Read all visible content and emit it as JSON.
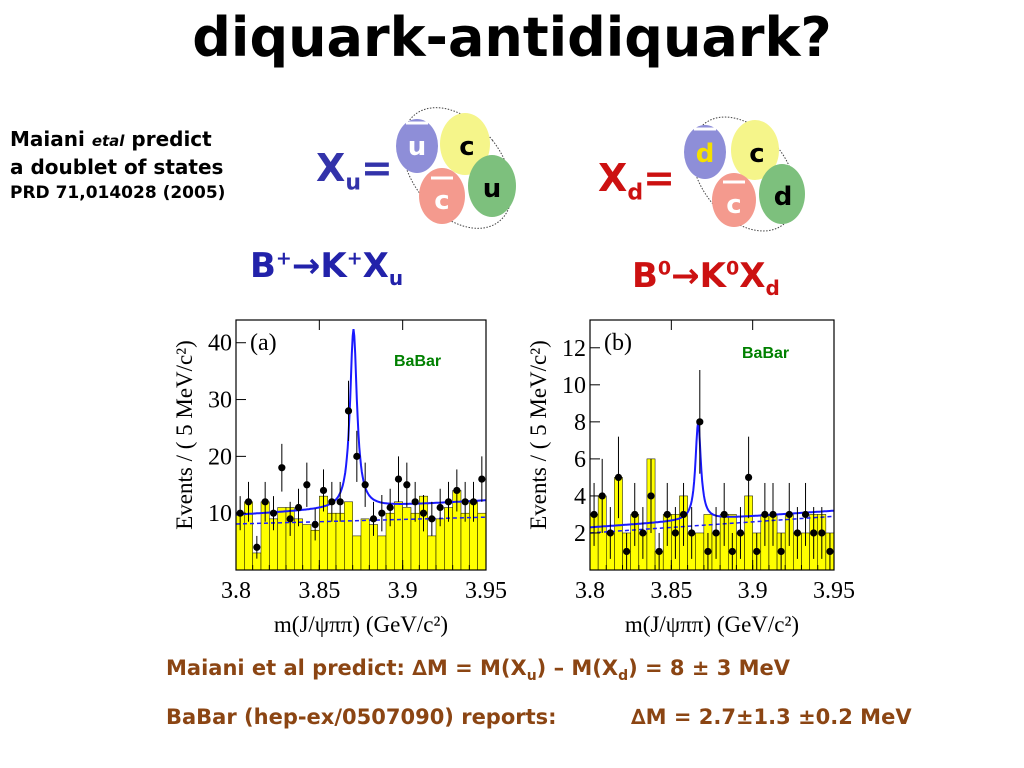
{
  "title": "diquark-antidiquark?",
  "side_note": {
    "line1_pre": "Maiani ",
    "line1_em": "etal",
    "line1_post": " predict",
    "line2": "a doublet of states",
    "line3": "PRD 71,014028 (2005)"
  },
  "xu": {
    "label": "X",
    "sub": "u",
    "eq": "=",
    "quarks": [
      "u",
      "c",
      "c",
      "u"
    ],
    "colors": {
      "label": "#3333aa",
      "ubar": "#8e8ed8",
      "c": "#f5f58a",
      "cbar": "#f49a8e",
      "u": "#7dc07d"
    }
  },
  "xd": {
    "label": "X",
    "sub": "d",
    "eq": "=",
    "quarks": [
      "d",
      "c",
      "c",
      "d"
    ],
    "colors": {
      "label": "#cc1111",
      "dbar": "#8e8ed8",
      "dbar_text": "#f5e000",
      "c": "#f5f58a",
      "cbar": "#f49a8e",
      "d": "#7dc07d"
    }
  },
  "decay_u": {
    "b": "B",
    "b_sup": "+",
    "arrow": "→",
    "k": "K",
    "k_sup": "+",
    "x": "X",
    "x_sub": "u",
    "color": "#2222aa"
  },
  "decay_d": {
    "b": "B",
    "b_sup": "0",
    "arrow": "→",
    "k": "K",
    "k_sup": "0",
    "x": "X",
    "x_sub": "d",
    "color": "#cc1111"
  },
  "chart_data": [
    {
      "type": "scatter",
      "panel": "(a)",
      "label": "BaBar",
      "ylabel": "Events / ( 5 MeV/c²)",
      "xlabel": "m(J/ψππ) (GeV/c²)",
      "xlim": [
        3.8,
        3.95
      ],
      "ylim": [
        0,
        44
      ],
      "xticks": [
        "3.8",
        "3.85",
        "3.9",
        "3.95"
      ],
      "yticks": [
        "10",
        "20",
        "30",
        "40"
      ],
      "points": [
        {
          "x": 3.8025,
          "y": 10,
          "e": 3
        },
        {
          "x": 3.8075,
          "y": 12,
          "e": 3.5
        },
        {
          "x": 3.8125,
          "y": 4,
          "e": 2
        },
        {
          "x": 3.8175,
          "y": 12,
          "e": 3.5
        },
        {
          "x": 3.8225,
          "y": 10,
          "e": 3
        },
        {
          "x": 3.8275,
          "y": 18,
          "e": 4.2
        },
        {
          "x": 3.8325,
          "y": 9,
          "e": 3
        },
        {
          "x": 3.8375,
          "y": 11,
          "e": 3.3
        },
        {
          "x": 3.8425,
          "y": 15,
          "e": 3.9
        },
        {
          "x": 3.8475,
          "y": 8,
          "e": 2.8
        },
        {
          "x": 3.8525,
          "y": 14,
          "e": 3.7
        },
        {
          "x": 3.8575,
          "y": 12,
          "e": 3.5
        },
        {
          "x": 3.8625,
          "y": 12,
          "e": 3.5
        },
        {
          "x": 3.8675,
          "y": 28,
          "e": 5.3
        },
        {
          "x": 3.8725,
          "y": 20,
          "e": 4.5
        },
        {
          "x": 3.8775,
          "y": 15,
          "e": 3.9
        },
        {
          "x": 3.8825,
          "y": 9,
          "e": 3
        },
        {
          "x": 3.8875,
          "y": 10,
          "e": 3.2
        },
        {
          "x": 3.8925,
          "y": 11,
          "e": 3.3
        },
        {
          "x": 3.8975,
          "y": 16,
          "e": 4
        },
        {
          "x": 3.9025,
          "y": 15,
          "e": 3.9
        },
        {
          "x": 3.9075,
          "y": 12,
          "e": 3.5
        },
        {
          "x": 3.9125,
          "y": 10,
          "e": 3.2
        },
        {
          "x": 3.9175,
          "y": 9,
          "e": 3
        },
        {
          "x": 3.9225,
          "y": 11,
          "e": 3.3
        },
        {
          "x": 3.9275,
          "y": 12,
          "e": 3.5
        },
        {
          "x": 3.9325,
          "y": 14,
          "e": 3.7
        },
        {
          "x": 3.9375,
          "y": 12,
          "e": 3.5
        },
        {
          "x": 3.9425,
          "y": 12,
          "e": 3.5
        },
        {
          "x": 3.9475,
          "y": 16,
          "e": 4
        }
      ],
      "histogram": [
        10,
        12,
        3,
        12,
        9,
        11,
        11,
        9,
        8,
        7,
        13,
        10,
        10,
        12,
        6,
        9,
        8,
        6,
        10,
        12,
        11,
        10,
        13,
        6,
        9,
        11,
        14,
        10,
        12,
        10
      ],
      "fit": {
        "base": 9.7,
        "slope": 17,
        "peak_x": 3.8705,
        "peak_amp": 31.5,
        "width": 0.0025
      },
      "dashed_bkg": {
        "base": 8.1,
        "slope": 8
      }
    },
    {
      "type": "scatter",
      "panel": "(b)",
      "label": "BaBar",
      "ylabel": "Events / ( 5 MeV/c²)",
      "xlabel": "m(J/ψππ) (GeV/c²)",
      "xlim": [
        3.8,
        3.95
      ],
      "ylim": [
        0,
        13.5
      ],
      "xticks": [
        "3.8",
        "3.85",
        "3.9",
        "3.95"
      ],
      "yticks": [
        "2",
        "4",
        "6",
        "8",
        "10",
        "12"
      ],
      "points": [
        {
          "x": 3.8025,
          "y": 3,
          "e": 1.7
        },
        {
          "x": 3.8075,
          "y": 4,
          "e": 2
        },
        {
          "x": 3.8125,
          "y": 2,
          "e": 1.4
        },
        {
          "x": 3.8175,
          "y": 5,
          "e": 2.2
        },
        {
          "x": 3.8225,
          "y": 1,
          "e": 1
        },
        {
          "x": 3.8275,
          "y": 3,
          "e": 1.7
        },
        {
          "x": 3.8325,
          "y": 2,
          "e": 1.4
        },
        {
          "x": 3.8375,
          "y": 4,
          "e": 2
        },
        {
          "x": 3.8425,
          "y": 1,
          "e": 1
        },
        {
          "x": 3.8475,
          "y": 3,
          "e": 1.7
        },
        {
          "x": 3.8525,
          "y": 2,
          "e": 1.4
        },
        {
          "x": 3.8575,
          "y": 3,
          "e": 1.7
        },
        {
          "x": 3.8625,
          "y": 2,
          "e": 1.4
        },
        {
          "x": 3.8675,
          "y": 8,
          "e": 2.8
        },
        {
          "x": 3.8725,
          "y": 1,
          "e": 1
        },
        {
          "x": 3.8775,
          "y": 2,
          "e": 1.4
        },
        {
          "x": 3.8825,
          "y": 3,
          "e": 1.7
        },
        {
          "x": 3.8875,
          "y": 1,
          "e": 1
        },
        {
          "x": 3.8925,
          "y": 2,
          "e": 1.4
        },
        {
          "x": 3.8975,
          "y": 5,
          "e": 2.2
        },
        {
          "x": 3.9025,
          "y": 1,
          "e": 1
        },
        {
          "x": 3.9075,
          "y": 3,
          "e": 1.7
        },
        {
          "x": 3.9125,
          "y": 3,
          "e": 1.7
        },
        {
          "x": 3.9175,
          "y": 1,
          "e": 1
        },
        {
          "x": 3.9225,
          "y": 3,
          "e": 1.7
        },
        {
          "x": 3.9275,
          "y": 2,
          "e": 1.4
        },
        {
          "x": 3.9325,
          "y": 3,
          "e": 1.7
        },
        {
          "x": 3.9375,
          "y": 2,
          "e": 1.4
        },
        {
          "x": 3.9425,
          "y": 2,
          "e": 1.4
        },
        {
          "x": 3.9475,
          "y": 1,
          "e": 1
        }
      ],
      "histogram": [
        3,
        4,
        2,
        5,
        2,
        3,
        2,
        6,
        1,
        3,
        3,
        4,
        2,
        2,
        3,
        2,
        3,
        3,
        2,
        4,
        2,
        3,
        3,
        2,
        3,
        2,
        2,
        3,
        3,
        2
      ],
      "fit": {
        "base": 2.3,
        "slope": 6,
        "peak_x": 3.8665,
        "peak_amp": 5.3,
        "width": 0.002
      },
      "dashed_bkg": {
        "base": 2.0,
        "slope": 6
      }
    }
  ],
  "bottom": {
    "line1_a": "Maiani et al predict:  ",
    "delta": "∆",
    "line1_b": "M = M(X",
    "sub_u": "u",
    "line1_c": ") – M(X",
    "sub_d": "d",
    "line1_d": ") = 8 ± 3 MeV",
    "line2_a": "BaBar (hep-ex/0507090) reports:",
    "line2_b": "M = 2.7±1.3 ±0.2 MeV"
  },
  "colors": {
    "fill": "#ffff00",
    "fit": "#1a1aff",
    "babar": "#008000",
    "bottom_text": "#8b4513"
  }
}
